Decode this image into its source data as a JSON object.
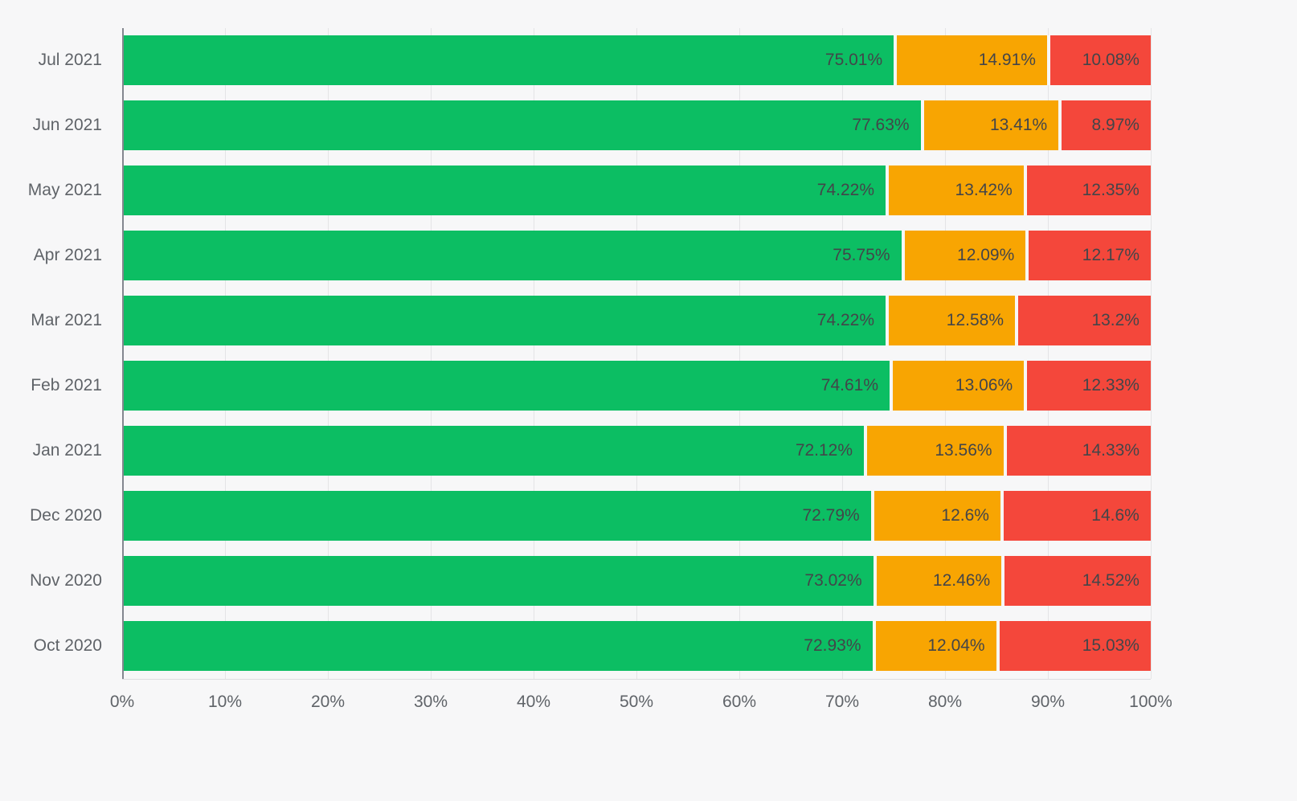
{
  "page": {
    "background": "#f7f7f8"
  },
  "chart_data": {
    "type": "bar",
    "orientation": "horizontal",
    "stacked": true,
    "title": "",
    "xlabel": "",
    "ylabel": "",
    "xlim": [
      0,
      100
    ],
    "grid": true,
    "legend_position": "none",
    "x_ticks": [
      "0%",
      "10%",
      "20%",
      "30%",
      "40%",
      "50%",
      "60%",
      "70%",
      "80%",
      "90%",
      "100%"
    ],
    "categories": [
      "Jul 2021",
      "Jun 2021",
      "May 2021",
      "Apr 2021",
      "Mar 2021",
      "Feb 2021",
      "Jan 2021",
      "Dec 2020",
      "Nov 2020",
      "Oct 2020"
    ],
    "series": [
      {
        "name": "green-segment",
        "color": "#0cbe63",
        "values": [
          75.01,
          77.63,
          74.22,
          75.75,
          74.22,
          74.61,
          72.12,
          72.79,
          73.02,
          72.93
        ],
        "labels": [
          "75.01%",
          "77.63%",
          "74.22%",
          "75.75%",
          "74.22%",
          "74.61%",
          "72.12%",
          "72.79%",
          "73.02%",
          "72.93%"
        ]
      },
      {
        "name": "orange-segment",
        "color": "#f8a502",
        "values": [
          14.91,
          13.41,
          13.42,
          12.09,
          12.58,
          13.06,
          13.56,
          12.6,
          12.46,
          12.04
        ],
        "labels": [
          "14.91%",
          "13.41%",
          "13.42%",
          "12.09%",
          "12.58%",
          "13.06%",
          "13.56%",
          "12.6%",
          "12.46%",
          "12.04%"
        ]
      },
      {
        "name": "red-segment",
        "color": "#f4473b",
        "values": [
          10.08,
          8.97,
          12.35,
          12.17,
          13.2,
          12.33,
          14.33,
          14.6,
          14.52,
          15.03
        ],
        "labels": [
          "10.08%",
          "8.97%",
          "12.35%",
          "12.17%",
          "13.2%",
          "12.33%",
          "14.33%",
          "14.6%",
          "14.52%",
          "15.03%"
        ]
      }
    ]
  }
}
